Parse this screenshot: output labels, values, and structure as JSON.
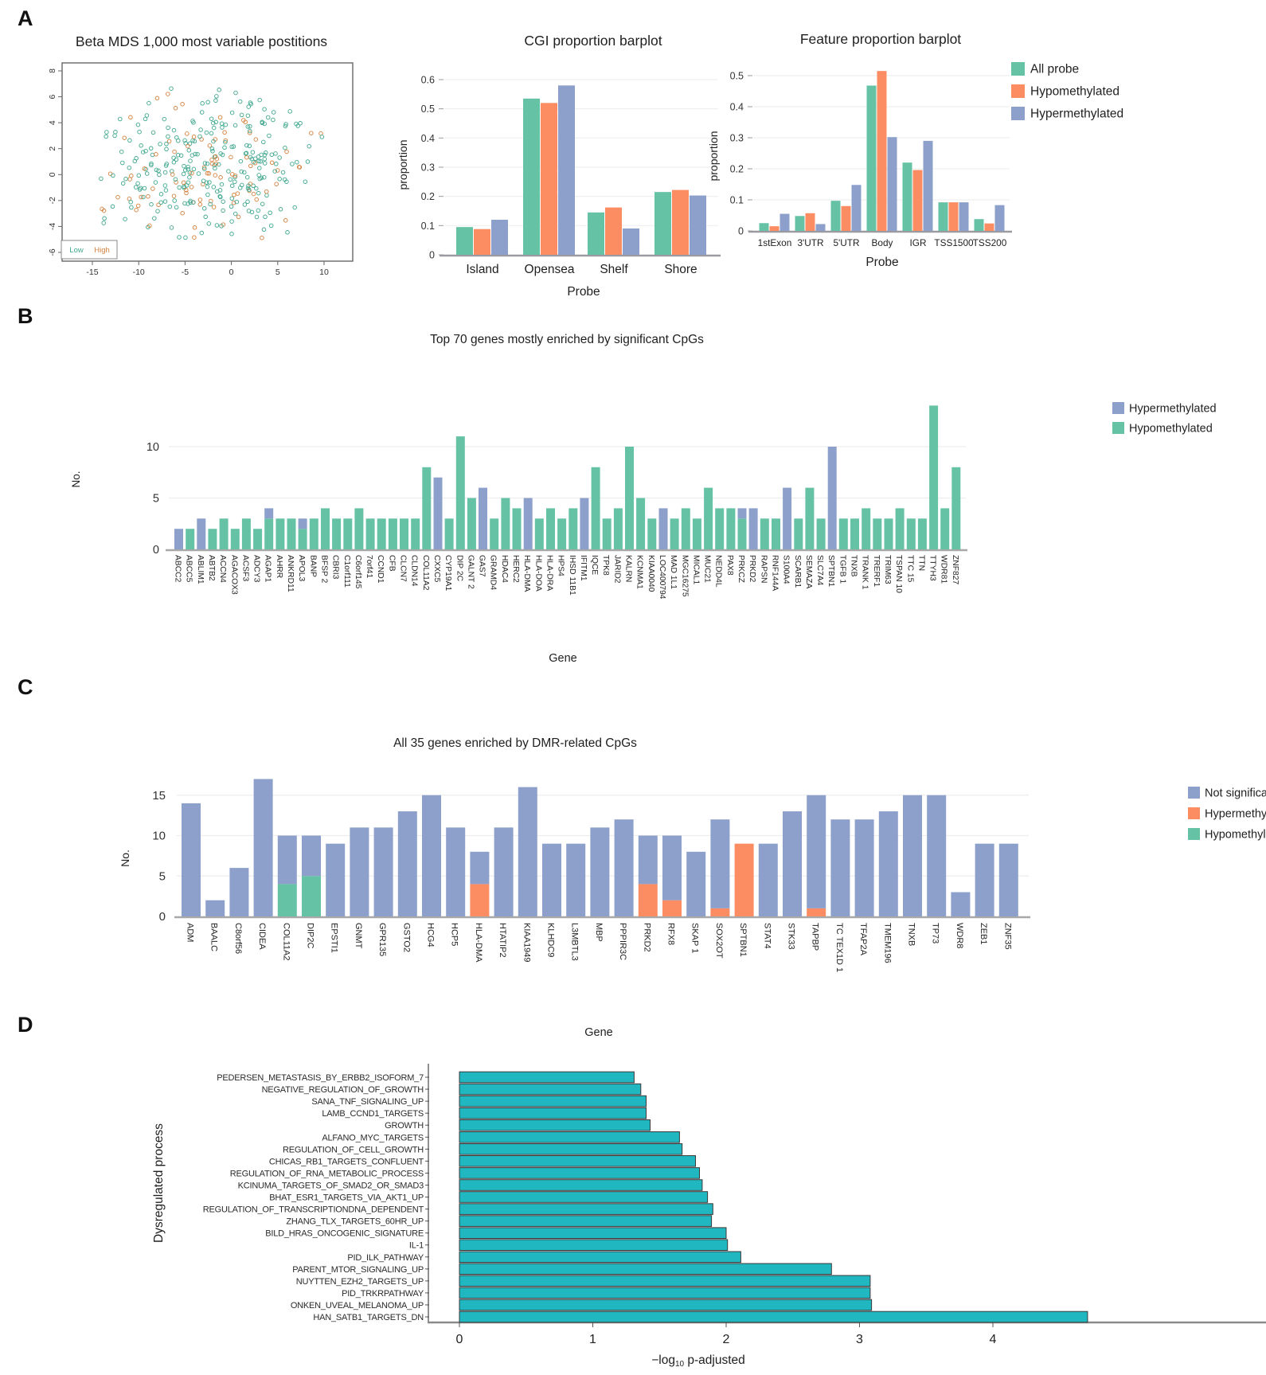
{
  "panel_labels": {
    "a": "A",
    "b": "B",
    "c": "C",
    "d": "D"
  },
  "colors": {
    "all_probe_green": "#66c2a5",
    "hypomethylated_orange": "#fc8d62",
    "hypermethylated_purple": "#8da0cb",
    "hypomethylated_green": "#66c2a5",
    "not_significant_purple": "#8da0cb",
    "process_bar_teal": "#20b7c1",
    "scatter_low_teal": "#3ea78d",
    "scatter_high_orange": "#d4813e"
  },
  "chart_data": [
    {
      "id": "mds",
      "type": "scatter",
      "title": "Beta MDS 1,000 most variable postitions",
      "xticks": [
        -15,
        -10,
        -5,
        0,
        5,
        10
      ],
      "yticks": [
        -6,
        -4,
        -2,
        0,
        2,
        4,
        6,
        8
      ],
      "xlim": [
        -17,
        12
      ],
      "ylim": [
        -6.8,
        8.5
      ],
      "legend": [
        {
          "label": "Low",
          "color": "#3ea78d"
        },
        {
          "label": "High",
          "color": "#d4813e"
        }
      ],
      "series": [
        {
          "name": "Low",
          "color": "#3ea78d",
          "n_points": 270
        },
        {
          "name": "High",
          "color": "#d4813e",
          "n_points": 90
        }
      ],
      "note": "~360 unlabeled open-circle points spread over x -15..10 and y -5..7; individual positions approximated"
    },
    {
      "id": "cgi",
      "type": "bar",
      "title": "CGI proportion barplot",
      "xlabel": "Probe",
      "ylabel": "proportion",
      "ylim": [
        0,
        0.6
      ],
      "yticks": [
        0,
        0.1,
        0.2,
        0.3,
        0.4,
        0.5,
        0.6
      ],
      "categories": [
        "Island",
        "Opensea",
        "Shelf",
        "Shore"
      ],
      "series": [
        {
          "name": "All probe",
          "color": "#66c2a5",
          "values": [
            0.095,
            0.535,
            0.145,
            0.215
          ]
        },
        {
          "name": "Hypomethylated",
          "color": "#fc8d62",
          "values": [
            0.088,
            0.52,
            0.162,
            0.222
          ]
        },
        {
          "name": "Hypermethylated",
          "color": "#8da0cb",
          "values": [
            0.12,
            0.58,
            0.09,
            0.203
          ]
        }
      ]
    },
    {
      "id": "feature",
      "type": "bar",
      "title": "Feature proportion barplot",
      "xlabel": "Probe",
      "ylabel": "proportion",
      "ylim": [
        0,
        0.55
      ],
      "yticks": [
        0,
        0.1,
        0.2,
        0.3,
        0.4,
        0.5
      ],
      "categories": [
        "1stExon",
        "3'UTR",
        "5'UTR",
        "Body",
        "IGR",
        "TSS1500",
        "TSS200"
      ],
      "series": [
        {
          "name": "All probe",
          "color": "#66c2a5",
          "values": [
            0.025,
            0.048,
            0.097,
            0.468,
            0.22,
            0.092,
            0.038
          ]
        },
        {
          "name": "Hypomethylated",
          "color": "#fc8d62",
          "values": [
            0.015,
            0.057,
            0.08,
            0.515,
            0.196,
            0.092,
            0.024
          ]
        },
        {
          "name": "Hypermethylated",
          "color": "#8da0cb",
          "values": [
            0.055,
            0.022,
            0.148,
            0.302,
            0.29,
            0.092,
            0.083
          ]
        }
      ],
      "legend_position": "right"
    },
    {
      "id": "top_genes",
      "type": "stacked-bar",
      "title": "Top 70 genes mostly enriched by significant CpGs",
      "xlabel": "Gene",
      "ylabel": "No.",
      "yticks": [
        0,
        5,
        10
      ],
      "legend": [
        {
          "label": "Hypermethylated",
          "color": "#8da0cb"
        },
        {
          "label": "Hypomethylated",
          "color": "#66c2a5"
        }
      ],
      "genes_format": [
        "gene",
        "hypomethylated_count",
        "hypermethylated_count"
      ],
      "genes": [
        [
          "ABCC2",
          0,
          2
        ],
        [
          "ABCC5",
          2,
          0
        ],
        [
          "ABLIM1",
          0,
          3
        ],
        [
          "ABTB2",
          2,
          0
        ],
        [
          "ACCN4",
          3,
          0
        ],
        [
          "AGACOX3",
          2,
          0
        ],
        [
          "ACSF3",
          3,
          0
        ],
        [
          "ADCY3",
          2,
          0
        ],
        [
          "AGAP1",
          3,
          1
        ],
        [
          "AHRR",
          3,
          0
        ],
        [
          "ANKRD11",
          3,
          0
        ],
        [
          "APOL3",
          2,
          1
        ],
        [
          "BANP",
          3,
          0
        ],
        [
          "BFSP 2",
          4,
          0
        ],
        [
          "CBRI3",
          3,
          0
        ],
        [
          "C1orf111",
          3,
          0
        ],
        [
          "C6orf145",
          4,
          0
        ],
        [
          "7orf41",
          3,
          0
        ],
        [
          "CCND1",
          3,
          0
        ],
        [
          "CFB",
          3,
          0
        ],
        [
          "CLCN7",
          3,
          0
        ],
        [
          "CLDN14",
          3,
          0
        ],
        [
          "COL11A2",
          8,
          0
        ],
        [
          "CXXC5",
          0,
          7
        ],
        [
          "CYP19A1",
          3,
          0
        ],
        [
          "DIP 2C",
          11,
          0
        ],
        [
          "GALNT 2",
          5,
          0
        ],
        [
          "GAS7",
          0,
          6
        ],
        [
          "GRAMD4",
          3,
          0
        ],
        [
          "HDAC4",
          5,
          0
        ],
        [
          "HERC2",
          4,
          0
        ],
        [
          "HLA-DMA",
          0,
          5
        ],
        [
          "HLA-DOA",
          3,
          0
        ],
        [
          "HLA-DRA",
          4,
          0
        ],
        [
          "HPS4",
          3,
          0
        ],
        [
          "IHSD 11B1",
          4,
          0
        ],
        [
          "IFITM1",
          0,
          5
        ],
        [
          "IQCE",
          8,
          0
        ],
        [
          "TPK8",
          3,
          0
        ],
        [
          "JARID2",
          4,
          0
        ],
        [
          "KALRN",
          10,
          0
        ],
        [
          "KCNMA1",
          5,
          0
        ],
        [
          "KIAA0040",
          3,
          0
        ],
        [
          "LOC400794",
          0,
          4
        ],
        [
          "MAD 1L1",
          3,
          0
        ],
        [
          "MGC16275",
          4,
          0
        ],
        [
          "MICAL1",
          3,
          0
        ],
        [
          "MUC21",
          6,
          0
        ],
        [
          "NEDD4L",
          4,
          0
        ],
        [
          "PAX8",
          4,
          0
        ],
        [
          "PRKCZ",
          3,
          1
        ],
        [
          "PRKD2",
          0,
          4
        ],
        [
          "RAPSN",
          3,
          0
        ],
        [
          "RNF144A",
          3,
          0
        ],
        [
          "S100A4",
          0,
          6
        ],
        [
          "SCARB1",
          3,
          0
        ],
        [
          "SEMAZA",
          6,
          0
        ],
        [
          "SLC7A4",
          3,
          0
        ],
        [
          "SPTBN1",
          0,
          10
        ],
        [
          "TGFB 1",
          3,
          0
        ],
        [
          "TNXB",
          3,
          0
        ],
        [
          "TRANK 1",
          4,
          0
        ],
        [
          "TRERF1",
          3,
          0
        ],
        [
          "TRIM63",
          3,
          0
        ],
        [
          "TSPAN 10",
          4,
          0
        ],
        [
          "TTC 15",
          3,
          0
        ],
        [
          "TTN",
          3,
          0
        ],
        [
          "TTYH3",
          14,
          0
        ],
        [
          "WDR81",
          4,
          0
        ],
        [
          "ZNF827",
          8,
          0
        ]
      ]
    },
    {
      "id": "dmr_genes",
      "type": "stacked-bar",
      "title": "All 35 genes enriched by DMR-related CpGs",
      "xlabel": "Gene",
      "ylabel": "No.",
      "yticks": [
        0,
        5,
        10,
        15
      ],
      "legend": [
        {
          "label": "Not significant",
          "color": "#8da0cb"
        },
        {
          "label": "Hypermethylated",
          "color": "#fc8d62"
        },
        {
          "label": "Hypomethylated",
          "color": "#66c2a5"
        }
      ],
      "genes_format": [
        "gene",
        "not_significant_count",
        "hypermethylated_count",
        "hypomethylated_count"
      ],
      "genes": [
        [
          "ADM",
          14,
          0,
          0
        ],
        [
          "BAALC",
          2,
          0,
          0
        ],
        [
          "C8orf56",
          6,
          0,
          0
        ],
        [
          "CIDEA",
          17,
          0,
          0
        ],
        [
          "COL11A2",
          6,
          0,
          4
        ],
        [
          "DIP2C",
          5,
          0,
          5
        ],
        [
          "EPSTI1",
          9,
          0,
          0
        ],
        [
          "GNMT",
          11,
          0,
          0
        ],
        [
          "GPR135",
          11,
          0,
          0
        ],
        [
          "GSTO2",
          13,
          0,
          0
        ],
        [
          "HCG4",
          15,
          0,
          0
        ],
        [
          "HCP5",
          11,
          0,
          0
        ],
        [
          "HLA-DMA",
          4,
          4,
          0
        ],
        [
          "HTATIP2",
          11,
          0,
          0
        ],
        [
          "KIAA1949",
          16,
          0,
          0
        ],
        [
          "KLHDC9",
          9,
          0,
          0
        ],
        [
          "L3MBTL3",
          9,
          0,
          0
        ],
        [
          "MBP",
          11,
          0,
          0
        ],
        [
          "PPPIR3C",
          12,
          0,
          0
        ],
        [
          "PRKD2",
          6,
          4,
          0
        ],
        [
          "RFX8",
          8,
          2,
          0
        ],
        [
          "SKAP 1",
          8,
          0,
          0
        ],
        [
          "SOX2OT",
          11,
          1,
          0
        ],
        [
          "SPTBN1",
          0,
          9,
          0
        ],
        [
          "STAT4",
          9,
          0,
          0
        ],
        [
          "STK33",
          13,
          0,
          0
        ],
        [
          "TAPBP",
          14,
          1,
          0
        ],
        [
          "TC TEX1D 1",
          12,
          0,
          0
        ],
        [
          "TFAP2A",
          12,
          0,
          0
        ],
        [
          "TMEM196",
          13,
          0,
          0
        ],
        [
          "TNXB",
          15,
          0,
          0
        ],
        [
          "TP73",
          15,
          0,
          0
        ],
        [
          "WDR8",
          3,
          0,
          0
        ],
        [
          "ZEB1",
          9,
          0,
          0
        ],
        [
          "ZNF35",
          9,
          0,
          0
        ]
      ]
    },
    {
      "id": "processes",
      "type": "hbar",
      "ylabel": "Dysregulated process",
      "xlabel": {
        "prefix": "−log",
        "sub": "10",
        "suffix": " p-adjusted"
      },
      "xticks": [
        0,
        1,
        2,
        3,
        4
      ],
      "bar_color": "#20b7c1",
      "bars_format": [
        "process",
        "neg_log10_p_adjusted"
      ],
      "bars": [
        [
          "PEDERSEN_METASTASIS_BY_ERBB2_ISOFORM_7",
          1.31
        ],
        [
          "NEGATIVE_REGULATION_OF_GROWTH",
          1.36
        ],
        [
          "SANA_TNF_SIGNALING_UP",
          1.4
        ],
        [
          "LAMB_CCND1_TARGETS",
          1.4
        ],
        [
          "GROWTH",
          1.43
        ],
        [
          "ALFANO_MYC_TARGETS",
          1.65
        ],
        [
          "REGULATION_OF_CELL_GROWTH",
          1.67
        ],
        [
          "CHICAS_RB1_TARGETS_CONFLUENT",
          1.77
        ],
        [
          "REGULATION_OF_RNA_METABOLIC_PROCESS",
          1.8
        ],
        [
          "KCINUMA_TARGETS_OF_SMAD2_OR_SMAD3",
          1.82
        ],
        [
          "BHAT_ESR1_TARGETS_VIA_AKT1_UP",
          1.86
        ],
        [
          "REGULATION_OF_TRANSCRIPTIONDNA_DEPENDENT",
          1.9
        ],
        [
          "ZHANG_TLX_TARGETS_60HR_UP",
          1.89
        ],
        [
          "BILD_HRAS_ONCOGENIC_SIGNATURE",
          2.0
        ],
        [
          "IL-1",
          2.01
        ],
        [
          "PID_ILK_PATHWAY",
          2.11
        ],
        [
          "PARENT_MTOR_SIGNALING_UP",
          2.79
        ],
        [
          "NUYTTEN_EZH2_TARGETS_UP",
          3.08
        ],
        [
          "PID_TRKRPATHWAY",
          3.08
        ],
        [
          "ONKEN_UVEAL_MELANOMA_UP",
          3.09
        ],
        [
          "HAN_SATB1_TARGETS_DN",
          4.71
        ]
      ]
    }
  ]
}
